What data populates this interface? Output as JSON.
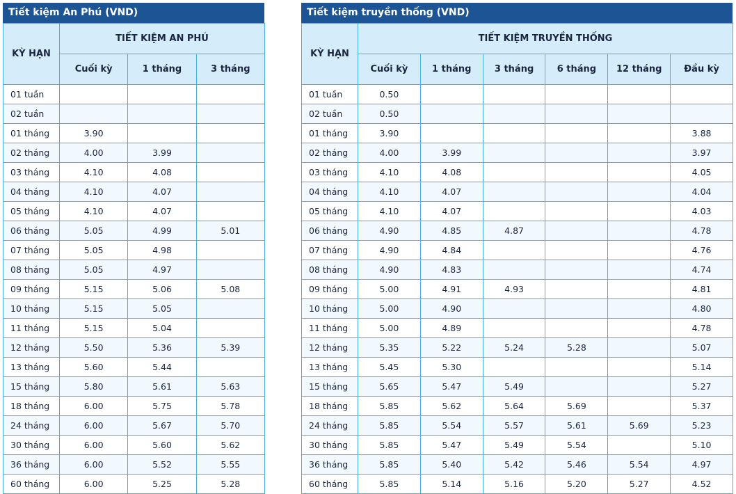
{
  "tables": [
    {
      "title": "Tiết kiệm An Phú (VND)",
      "term_header": "KỲ HẠN",
      "group_header": "TIẾT KIỆM AN PHÚ",
      "columns": [
        "Cuối kỳ",
        "1 tháng",
        "3 tháng"
      ],
      "rows": [
        [
          "01 tuần",
          null,
          null,
          null
        ],
        [
          "02 tuần",
          null,
          null,
          null
        ],
        [
          "01 tháng",
          "3.90",
          null,
          null
        ],
        [
          "02 tháng",
          "4.00",
          "3.99",
          null
        ],
        [
          "03 tháng",
          "4.10",
          "4.08",
          null
        ],
        [
          "04 tháng",
          "4.10",
          "4.07",
          null
        ],
        [
          "05 tháng",
          "4.10",
          "4.07",
          null
        ],
        [
          "06 tháng",
          "5.05",
          "4.99",
          "5.01"
        ],
        [
          "07 tháng",
          "5.05",
          "4.98",
          null
        ],
        [
          "08 tháng",
          "5.05",
          "4.97",
          null
        ],
        [
          "09 tháng",
          "5.15",
          "5.06",
          "5.08"
        ],
        [
          "10 tháng",
          "5.15",
          "5.05",
          null
        ],
        [
          "11 tháng",
          "5.15",
          "5.04",
          null
        ],
        [
          "12 tháng",
          "5.50",
          "5.36",
          "5.39"
        ],
        [
          "13 tháng",
          "5.60",
          "5.44",
          null
        ],
        [
          "15 tháng",
          "5.80",
          "5.61",
          "5.63"
        ],
        [
          "18 tháng",
          "6.00",
          "5.75",
          "5.78"
        ],
        [
          "24 tháng",
          "6.00",
          "5.67",
          "5.70"
        ],
        [
          "30 tháng",
          "6.00",
          "5.60",
          "5.62"
        ],
        [
          "36 tháng",
          "6.00",
          "5.52",
          "5.55"
        ],
        [
          "60 tháng",
          "6.00",
          "5.25",
          "5.28"
        ]
      ]
    },
    {
      "title": "Tiết kiệm truyền thống (VND)",
      "term_header": "KỲ HẠN",
      "group_header": "TIẾT KIỆM TRUYỀN THỐNG",
      "columns": [
        "Cuối kỳ",
        "1 tháng",
        "3 tháng",
        "6 tháng",
        "12 tháng",
        "Đầu kỳ"
      ],
      "rows": [
        [
          "01 tuần",
          "0.50",
          null,
          null,
          null,
          null,
          null
        ],
        [
          "02 tuần",
          "0.50",
          null,
          null,
          null,
          null,
          null
        ],
        [
          "01 tháng",
          "3.90",
          null,
          null,
          null,
          null,
          "3.88"
        ],
        [
          "02 tháng",
          "4.00",
          "3.99",
          null,
          null,
          null,
          "3.97"
        ],
        [
          "03 tháng",
          "4.10",
          "4.08",
          null,
          null,
          null,
          "4.05"
        ],
        [
          "04 tháng",
          "4.10",
          "4.07",
          null,
          null,
          null,
          "4.04"
        ],
        [
          "05 tháng",
          "4.10",
          "4.07",
          null,
          null,
          null,
          "4.03"
        ],
        [
          "06 tháng",
          "4.90",
          "4.85",
          "4.87",
          null,
          null,
          "4.78"
        ],
        [
          "07 tháng",
          "4.90",
          "4.84",
          null,
          null,
          null,
          "4.76"
        ],
        [
          "08 tháng",
          "4.90",
          "4.83",
          null,
          null,
          null,
          "4.74"
        ],
        [
          "09 tháng",
          "5.00",
          "4.91",
          "4.93",
          null,
          null,
          "4.81"
        ],
        [
          "10 tháng",
          "5.00",
          "4.90",
          null,
          null,
          null,
          "4.80"
        ],
        [
          "11 tháng",
          "5.00",
          "4.89",
          null,
          null,
          null,
          "4.78"
        ],
        [
          "12 tháng",
          "5.35",
          "5.22",
          "5.24",
          "5.28",
          null,
          "5.07"
        ],
        [
          "13 tháng",
          "5.45",
          "5.30",
          null,
          null,
          null,
          "5.14"
        ],
        [
          "15 tháng",
          "5.65",
          "5.47",
          "5.49",
          null,
          null,
          "5.27"
        ],
        [
          "18 tháng",
          "5.85",
          "5.62",
          "5.64",
          "5.69",
          null,
          "5.37"
        ],
        [
          "24 tháng",
          "5.85",
          "5.54",
          "5.57",
          "5.61",
          "5.69",
          "5.23"
        ],
        [
          "30 tháng",
          "5.85",
          "5.47",
          "5.49",
          "5.54",
          null,
          "5.10"
        ],
        [
          "36 tháng",
          "5.85",
          "5.40",
          "5.42",
          "5.46",
          "5.54",
          "4.97"
        ],
        [
          "60 tháng",
          "5.85",
          "5.14",
          "5.16",
          "5.20",
          "5.27",
          "4.52"
        ]
      ]
    }
  ]
}
